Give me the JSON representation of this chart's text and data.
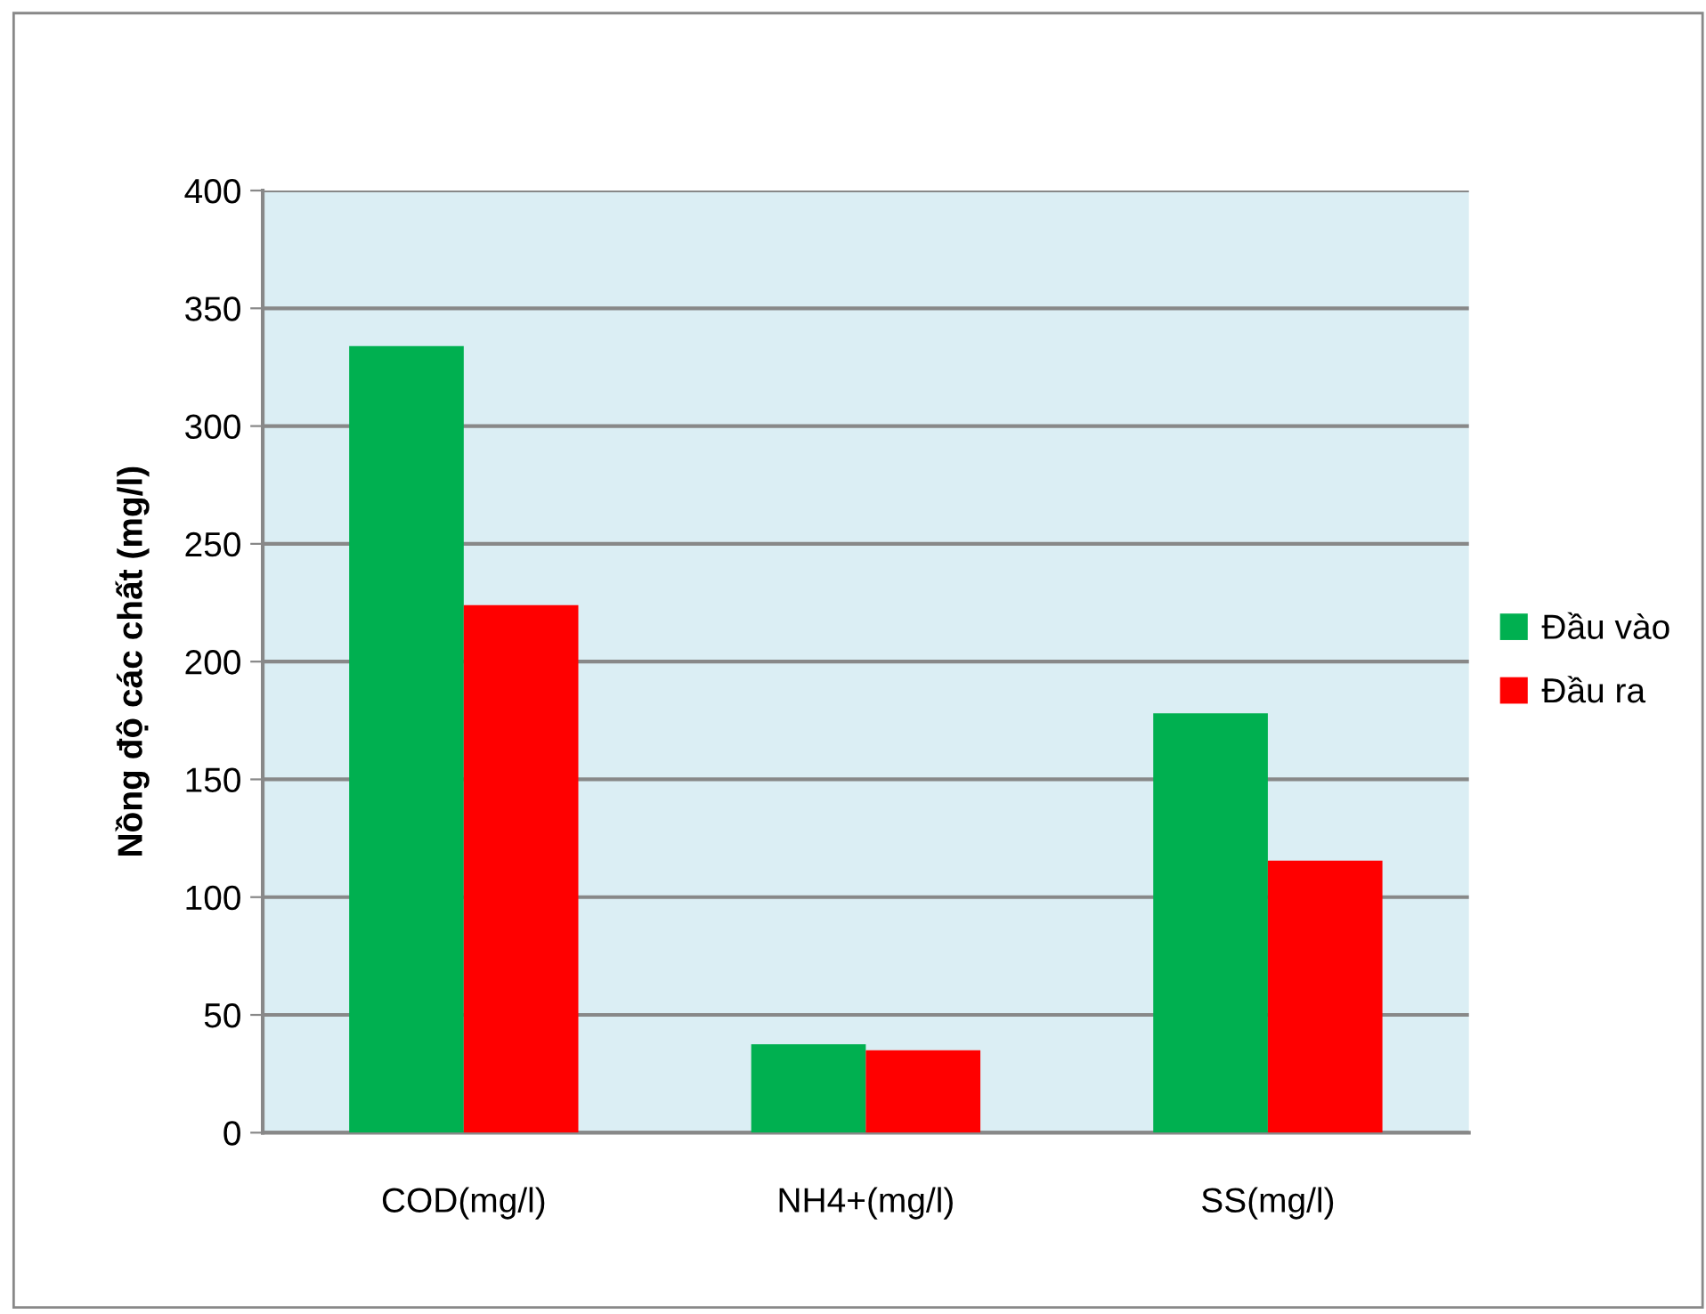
{
  "chart_data": {
    "type": "bar",
    "ylabel": "Nồng độ các chất (mg/l)",
    "categories": [
      "COD(mg/l)",
      "NH4+(mg/l)",
      "SS(mg/l)"
    ],
    "series": [
      {
        "name": "Đầu vào",
        "color": "#00b050",
        "values": [
          334,
          37.5,
          178
        ]
      },
      {
        "name": "Đầu ra",
        "color": "#ff0000",
        "values": [
          224,
          35,
          115.5
        ]
      }
    ],
    "ylim": [
      0,
      400
    ],
    "yticks": [
      0,
      50,
      100,
      150,
      200,
      250,
      300,
      350,
      400
    ],
    "grid": "y",
    "legend": "right"
  }
}
